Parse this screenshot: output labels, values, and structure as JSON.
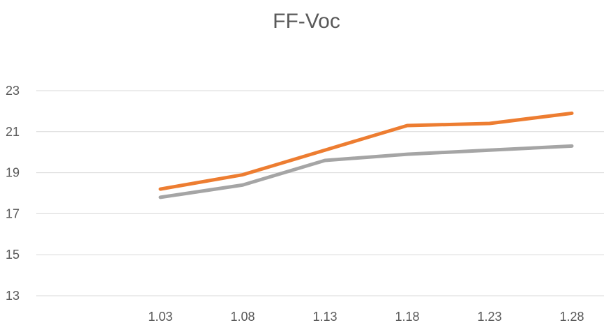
{
  "chart_data": {
    "type": "line",
    "title": "FF-Voc",
    "xlabel": "",
    "ylabel": "",
    "categories": [
      "1.03",
      "1.08",
      "1.13",
      "1.18",
      "1.23",
      "1.28"
    ],
    "series": [
      {
        "color": "#ED7D31",
        "values": [
          18.2,
          18.9,
          20.1,
          21.3,
          21.4,
          21.9
        ]
      },
      {
        "color": "#A5A5A5",
        "values": [
          17.8,
          18.4,
          19.6,
          19.9,
          20.1,
          20.3
        ]
      }
    ],
    "ylim": [
      13,
      23
    ],
    "yticks": [
      "13",
      "15",
      "17",
      "19",
      "21",
      "23"
    ],
    "grid": true,
    "legend": "none"
  }
}
